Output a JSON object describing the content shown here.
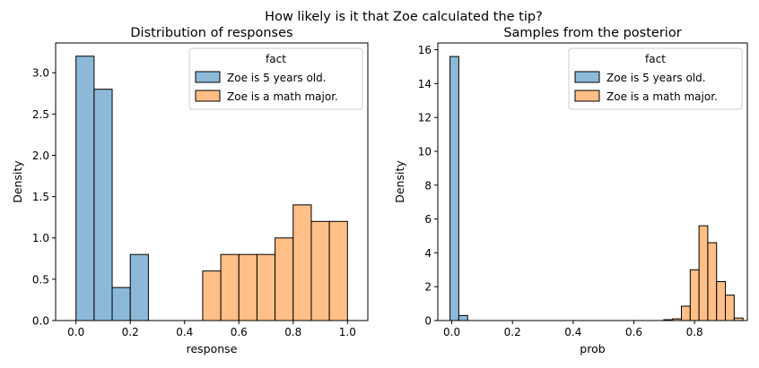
{
  "figure": {
    "suptitle": "How likely is it that Zoe calculated the tip?"
  },
  "colors": {
    "blue": "#8db9d9",
    "orange": "#ffbf86",
    "edge": "#000000"
  },
  "chart_data": [
    {
      "type": "bar",
      "title": "Distribution of responses",
      "xlabel": "response",
      "ylabel": "Density",
      "xlim": [
        -0.075,
        1.075
      ],
      "ylim": [
        0,
        3.36
      ],
      "xticks": [
        0.0,
        0.2,
        0.4,
        0.6,
        0.8,
        1.0
      ],
      "xtick_labels": [
        "0.0",
        "0.2",
        "0.4",
        "0.6",
        "0.8",
        "1.0"
      ],
      "yticks": [
        0.0,
        0.5,
        1.0,
        1.5,
        2.0,
        2.5,
        3.0
      ],
      "ytick_labels": [
        "0.0",
        "0.5",
        "1.0",
        "1.5",
        "2.0",
        "2.5",
        "3.0"
      ],
      "legend": {
        "title": "fact",
        "position": "top-right"
      },
      "series": [
        {
          "name": "Zoe is 5 years old.",
          "color": "blue",
          "bins": [
            {
              "x0": 0.0,
              "x1": 0.0667,
              "value": 3.2
            },
            {
              "x0": 0.0667,
              "x1": 0.1333,
              "value": 2.8
            },
            {
              "x0": 0.1333,
              "x1": 0.2,
              "value": 0.4
            },
            {
              "x0": 0.2,
              "x1": 0.2667,
              "value": 0.8
            }
          ]
        },
        {
          "name": "Zoe is a math major.",
          "color": "orange",
          "bins": [
            {
              "x0": 0.4667,
              "x1": 0.5333,
              "value": 0.6
            },
            {
              "x0": 0.5333,
              "x1": 0.6,
              "value": 0.8
            },
            {
              "x0": 0.6,
              "x1": 0.6667,
              "value": 0.8
            },
            {
              "x0": 0.6667,
              "x1": 0.7333,
              "value": 0.8
            },
            {
              "x0": 0.7333,
              "x1": 0.8,
              "value": 1.0
            },
            {
              "x0": 0.8,
              "x1": 0.8667,
              "value": 1.4
            },
            {
              "x0": 0.8667,
              "x1": 0.9333,
              "value": 1.2
            },
            {
              "x0": 0.9333,
              "x1": 1.0,
              "value": 1.2
            }
          ]
        }
      ]
    },
    {
      "type": "bar",
      "title": "Samples from the posterior",
      "xlabel": "prob",
      "ylabel": "Density",
      "xlim": [
        -0.046,
        0.974
      ],
      "ylim": [
        0,
        16.4
      ],
      "xticks": [
        0.0,
        0.2,
        0.4,
        0.6,
        0.8
      ],
      "xtick_labels": [
        "0.0",
        "0.2",
        "0.4",
        "0.6",
        "0.8"
      ],
      "yticks": [
        0,
        2,
        4,
        6,
        8,
        10,
        12,
        14,
        16
      ],
      "ytick_labels": [
        "0",
        "2",
        "4",
        "6",
        "8",
        "10",
        "12",
        "14",
        "16"
      ],
      "legend": {
        "title": "fact",
        "position": "top-right"
      },
      "series": [
        {
          "name": "Zoe is 5 years old.",
          "color": "blue",
          "bins": [
            {
              "x0": -0.0058,
              "x1": 0.0232,
              "value": 15.6
            },
            {
              "x0": 0.0232,
              "x1": 0.0522,
              "value": 0.3
            }
          ]
        },
        {
          "name": "Zoe is a math major.",
          "color": "orange",
          "bins": [
            {
              "x0": 0.6987,
              "x1": 0.7277,
              "value": 0.05
            },
            {
              "x0": 0.7277,
              "x1": 0.7567,
              "value": 0.1
            },
            {
              "x0": 0.7567,
              "x1": 0.7857,
              "value": 0.85
            },
            {
              "x0": 0.7857,
              "x1": 0.8147,
              "value": 3.0
            },
            {
              "x0": 0.8147,
              "x1": 0.8437,
              "value": 5.6
            },
            {
              "x0": 0.8437,
              "x1": 0.8727,
              "value": 4.6
            },
            {
              "x0": 0.8727,
              "x1": 0.9017,
              "value": 2.3
            },
            {
              "x0": 0.9017,
              "x1": 0.9307,
              "value": 1.5
            },
            {
              "x0": 0.9307,
              "x1": 0.9597,
              "value": 0.15
            }
          ]
        }
      ]
    }
  ]
}
